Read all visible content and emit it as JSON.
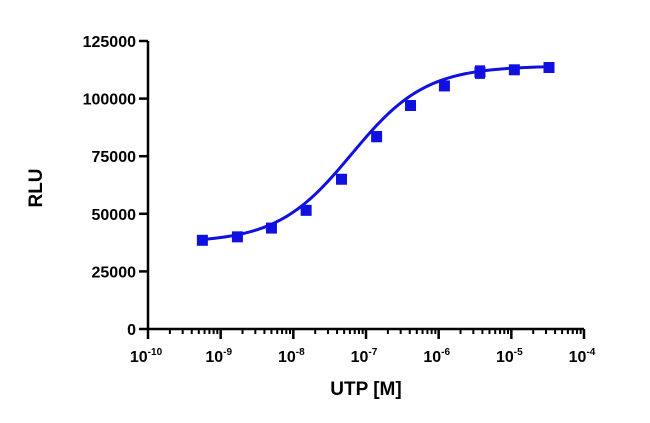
{
  "chart_data": {
    "type": "scatter",
    "xlabel": "UTP [M]",
    "ylabel": "RLU",
    "x_scale": "log",
    "xlim": [
      1e-10,
      0.0001
    ],
    "ylim": [
      0,
      125000
    ],
    "x_tick_base": "10",
    "x_ticks": [
      {
        "value": 1e-10,
        "exponent": "-10"
      },
      {
        "value": 1e-09,
        "exponent": "-9"
      },
      {
        "value": 1e-08,
        "exponent": "-8"
      },
      {
        "value": 1e-07,
        "exponent": "-7"
      },
      {
        "value": 1e-06,
        "exponent": "-6"
      },
      {
        "value": 1e-05,
        "exponent": "-5"
      },
      {
        "value": 0.0001,
        "exponent": "-4"
      }
    ],
    "y_ticks": [
      {
        "value": 0,
        "label": "0"
      },
      {
        "value": 25000,
        "label": "25000"
      },
      {
        "value": 50000,
        "label": "50000"
      },
      {
        "value": 75000,
        "label": "75000"
      },
      {
        "value": 100000,
        "label": "100000"
      },
      {
        "value": 125000,
        "label": "125000"
      }
    ],
    "grid": false,
    "color": "#1010e0",
    "series": [
      {
        "marker": "square",
        "points": [
          {
            "x": 5.6e-10,
            "y": 38500,
            "err": 500
          },
          {
            "x": 1.7e-09,
            "y": 40000,
            "err": 500
          },
          {
            "x": 5e-09,
            "y": 43800,
            "err": 600
          },
          {
            "x": 1.5e-08,
            "y": 51500,
            "err": 600
          },
          {
            "x": 4.6e-08,
            "y": 65000,
            "err": 1500
          },
          {
            "x": 1.4e-07,
            "y": 83500,
            "err": 2000
          },
          {
            "x": 4.1e-07,
            "y": 97000,
            "err": 800
          },
          {
            "x": 1.2e-06,
            "y": 105500,
            "err": 800
          },
          {
            "x": 3.7e-06,
            "y": 111500,
            "err": 2500
          },
          {
            "x": 1.1e-05,
            "y": 112500,
            "err": 700
          },
          {
            "x": 3.3e-05,
            "y": 113500,
            "err": 1500
          }
        ]
      }
    ],
    "fit_curve": {
      "model": "four-parameter logistic",
      "bottom": 37500,
      "top": 114200,
      "log_ec50": -7.2,
      "hill_slope": 0.85,
      "x_range": [
        5.6e-10,
        3.3e-05
      ]
    }
  }
}
